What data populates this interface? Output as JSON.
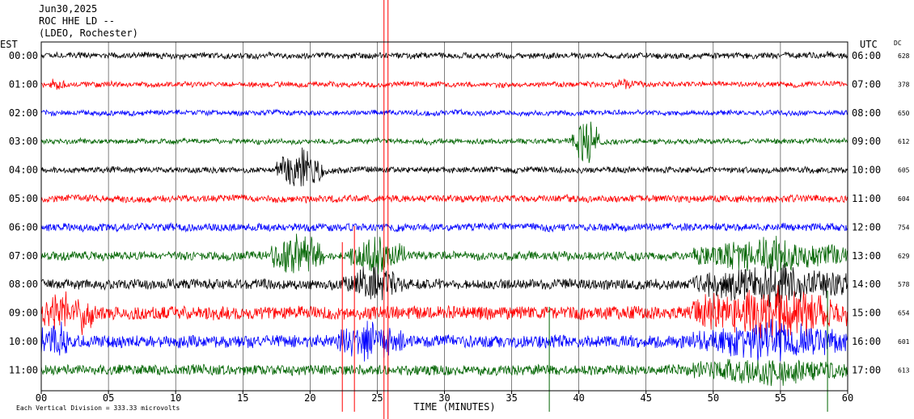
{
  "header": {
    "date": "Jun30,2025",
    "station": "ROC HHE LD --",
    "network": "(LDEO, Rochester)"
  },
  "left_axis_label": "EST",
  "right_axis_label": "UTC",
  "dc_label": "DC",
  "footer": {
    "scale_note": "Each Vertical Division = 333.33 microvolts"
  },
  "colors": {
    "black": "#000000",
    "red": "#ff0000",
    "blue": "#0000ff",
    "green": "#006400"
  },
  "chart_data": {
    "type": "line",
    "xlabel": "TIME (MINUTES)",
    "xlim": [
      0,
      60
    ],
    "x_ticks": [
      "00",
      "05",
      "10",
      "15",
      "20",
      "25",
      "30",
      "35",
      "40",
      "45",
      "50",
      "55",
      "60"
    ],
    "row_order": "top-to-bottom",
    "series": [
      {
        "est": "00:00",
        "utc": "06:00",
        "dc": "628",
        "color": "#000000",
        "noise": 7,
        "events": []
      },
      {
        "est": "01:00",
        "utc": "07:00",
        "dc": "378",
        "color": "#ff0000",
        "noise": 6,
        "events": [
          [
            0.5,
            1.8,
            10
          ],
          [
            42.5,
            44,
            9
          ]
        ]
      },
      {
        "est": "02:00",
        "utc": "08:00",
        "dc": "650",
        "color": "#0000ff",
        "noise": 6,
        "events": []
      },
      {
        "est": "03:00",
        "utc": "09:00",
        "dc": "612",
        "color": "#006400",
        "noise": 6,
        "events": [
          [
            39.5,
            41.5,
            45
          ]
        ]
      },
      {
        "est": "04:00",
        "utc": "10:00",
        "dc": "605",
        "color": "#000000",
        "noise": 7,
        "events": [
          [
            17.5,
            21,
            38
          ]
        ]
      },
      {
        "est": "05:00",
        "utc": "11:00",
        "dc": "604",
        "color": "#ff0000",
        "noise": 8,
        "events": []
      },
      {
        "est": "06:00",
        "utc": "12:00",
        "dc": "754",
        "color": "#0000ff",
        "noise": 9,
        "events": []
      },
      {
        "est": "07:00",
        "utc": "13:00",
        "dc": "629",
        "color": "#006400",
        "noise": 10,
        "events": [
          [
            17,
            21,
            40
          ],
          [
            23,
            27,
            38
          ],
          [
            48.5,
            60,
            30
          ]
        ]
      },
      {
        "est": "08:00",
        "utc": "14:00",
        "dc": "578",
        "color": "#000000",
        "noise": 12,
        "events": [
          [
            22.5,
            27,
            30
          ],
          [
            48.5,
            60,
            35
          ]
        ]
      },
      {
        "est": "09:00",
        "utc": "15:00",
        "dc": "654",
        "color": "#ff0000",
        "noise": 16,
        "events": [
          [
            0,
            4,
            40
          ],
          [
            48.5,
            60,
            45
          ]
        ]
      },
      {
        "est": "10:00",
        "utc": "16:00",
        "dc": "601",
        "color": "#0000ff",
        "noise": 15,
        "events": [
          [
            0,
            2,
            35
          ],
          [
            22,
            27,
            30
          ],
          [
            48.5,
            60,
            30
          ]
        ]
      },
      {
        "est": "11:00",
        "utc": "17:00",
        "dc": "613",
        "color": "#006400",
        "noise": 12,
        "events": [
          [
            48.5,
            60,
            22
          ]
        ]
      }
    ]
  }
}
